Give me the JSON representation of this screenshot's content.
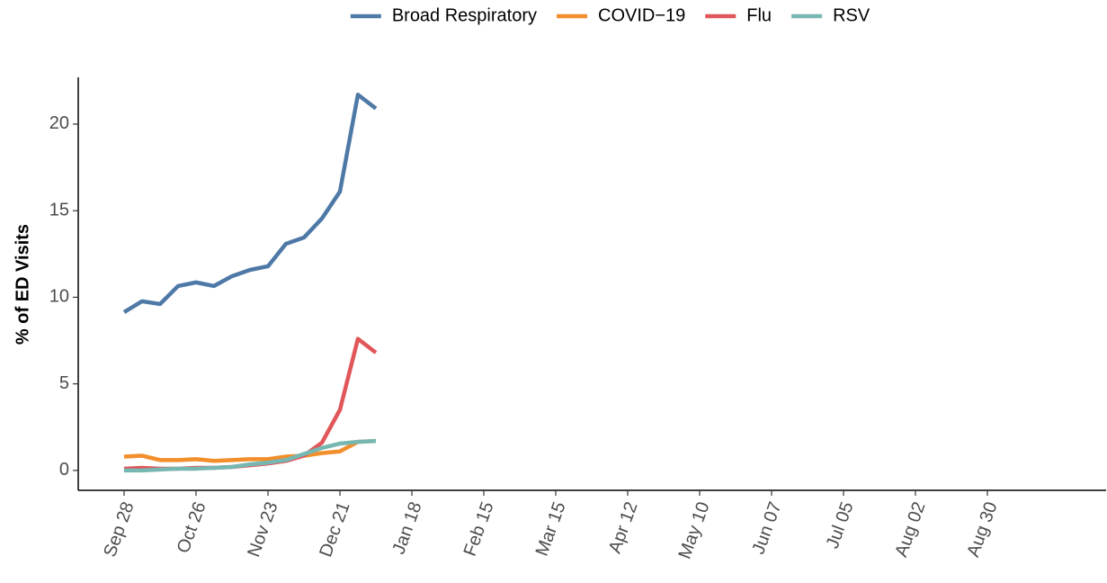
{
  "chart_data": {
    "type": "line",
    "y_label": "% of ED Visits",
    "categories": [
      "Sep 28",
      null,
      null,
      null,
      "Oct 26",
      null,
      null,
      null,
      "Nov 23",
      null,
      null,
      null,
      "Dec 21",
      null,
      null,
      null,
      "Jan 18",
      null,
      null,
      null,
      "Feb 15",
      null,
      null,
      null,
      "Mar 15",
      null,
      null,
      null,
      "Apr 12",
      null,
      null,
      null,
      "May 10",
      null,
      null,
      null,
      "Jun 07",
      null,
      null,
      null,
      "Jul 05",
      null,
      null,
      null,
      "Aug 02",
      null,
      null,
      null,
      "Aug 30",
      null,
      null,
      null,
      null
    ],
    "series": [
      {
        "name": "Broad Respiratory",
        "color": "#4e79a7",
        "values": [
          9.14,
          9.77,
          9.61,
          10.65,
          10.86,
          10.65,
          11.22,
          11.58,
          11.79,
          13.09,
          13.45,
          14.55,
          16.1,
          21.7,
          20.9,
          null,
          null,
          null,
          null,
          null,
          null,
          null,
          null,
          null,
          null,
          null,
          null,
          null,
          null,
          null,
          null,
          null,
          null,
          null,
          null,
          null,
          null,
          null,
          null,
          null,
          null,
          null,
          null,
          null,
          null,
          null,
          null,
          null,
          null,
          null,
          null,
          null,
          null
        ]
      },
      {
        "name": "COVID−19",
        "color": "#f28e2b",
        "values": [
          0.8,
          0.85,
          0.6,
          0.6,
          0.65,
          0.55,
          0.6,
          0.65,
          0.65,
          0.8,
          0.85,
          1.0,
          1.1,
          1.65,
          1.7,
          null,
          null,
          null,
          null,
          null,
          null,
          null,
          null,
          null,
          null,
          null,
          null,
          null,
          null,
          null,
          null,
          null,
          null,
          null,
          null,
          null,
          null,
          null,
          null,
          null,
          null,
          null,
          null,
          null,
          null,
          null,
          null,
          null,
          null,
          null,
          null,
          null,
          null
        ]
      },
      {
        "name": "Flu",
        "color": "#e15759",
        "values": [
          0.1,
          0.15,
          0.1,
          0.1,
          0.15,
          0.15,
          0.2,
          0.3,
          0.4,
          0.55,
          0.85,
          1.6,
          3.5,
          7.6,
          6.8,
          null,
          null,
          null,
          null,
          null,
          null,
          null,
          null,
          null,
          null,
          null,
          null,
          null,
          null,
          null,
          null,
          null,
          null,
          null,
          null,
          null,
          null,
          null,
          null,
          null,
          null,
          null,
          null,
          null,
          null,
          null,
          null,
          null,
          null,
          null,
          null,
          null,
          null
        ]
      },
      {
        "name": "RSV",
        "color": "#76b7b2",
        "values": [
          0.0,
          0.0,
          0.05,
          0.1,
          0.1,
          0.15,
          0.2,
          0.35,
          0.45,
          0.6,
          0.95,
          1.3,
          1.55,
          1.65,
          1.7,
          null,
          null,
          null,
          null,
          null,
          null,
          null,
          null,
          null,
          null,
          null,
          null,
          null,
          null,
          null,
          null,
          null,
          null,
          null,
          null,
          null,
          null,
          null,
          null,
          null,
          null,
          null,
          null,
          null,
          null,
          null,
          null,
          null,
          null,
          null,
          null,
          null,
          null
        ]
      }
    ],
    "ylim": [
      -1.15,
      22.7
    ],
    "yticks": [
      0,
      5,
      10,
      15,
      20
    ],
    "legend": "top",
    "grid": false
  }
}
